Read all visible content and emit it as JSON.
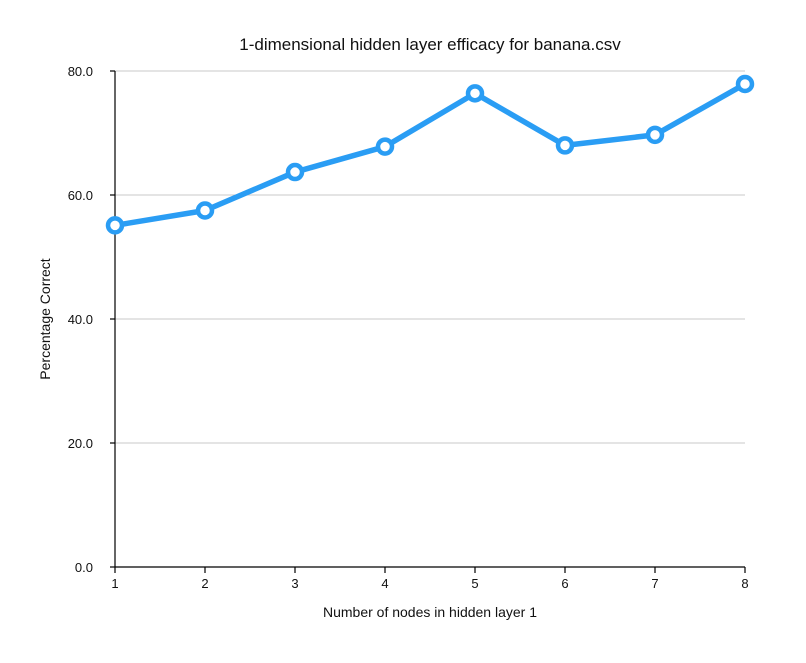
{
  "chart_data": {
    "type": "line",
    "title": "1-dimensional hidden layer efficacy for banana.csv",
    "xlabel": "Number of nodes in hidden layer 1",
    "ylabel": "Percentage Correct",
    "x": [
      1,
      2,
      3,
      4,
      5,
      6,
      7,
      8
    ],
    "x_tick_labels": [
      "1",
      "2",
      "3",
      "4",
      "5",
      "6",
      "7",
      "8"
    ],
    "y_ticks": [
      0,
      20,
      40,
      60,
      80
    ],
    "y_tick_labels": [
      "0.0",
      "20.0",
      "40.0",
      "60.0",
      "80.0"
    ],
    "ylim": [
      0,
      80
    ],
    "xlim": [
      1,
      8
    ],
    "grid": true,
    "legend": "none",
    "series": [
      {
        "values": [
          55.1,
          57.5,
          63.7,
          67.8,
          76.4,
          68.0,
          69.7,
          77.9
        ],
        "color": "#2a9df4"
      }
    ]
  }
}
